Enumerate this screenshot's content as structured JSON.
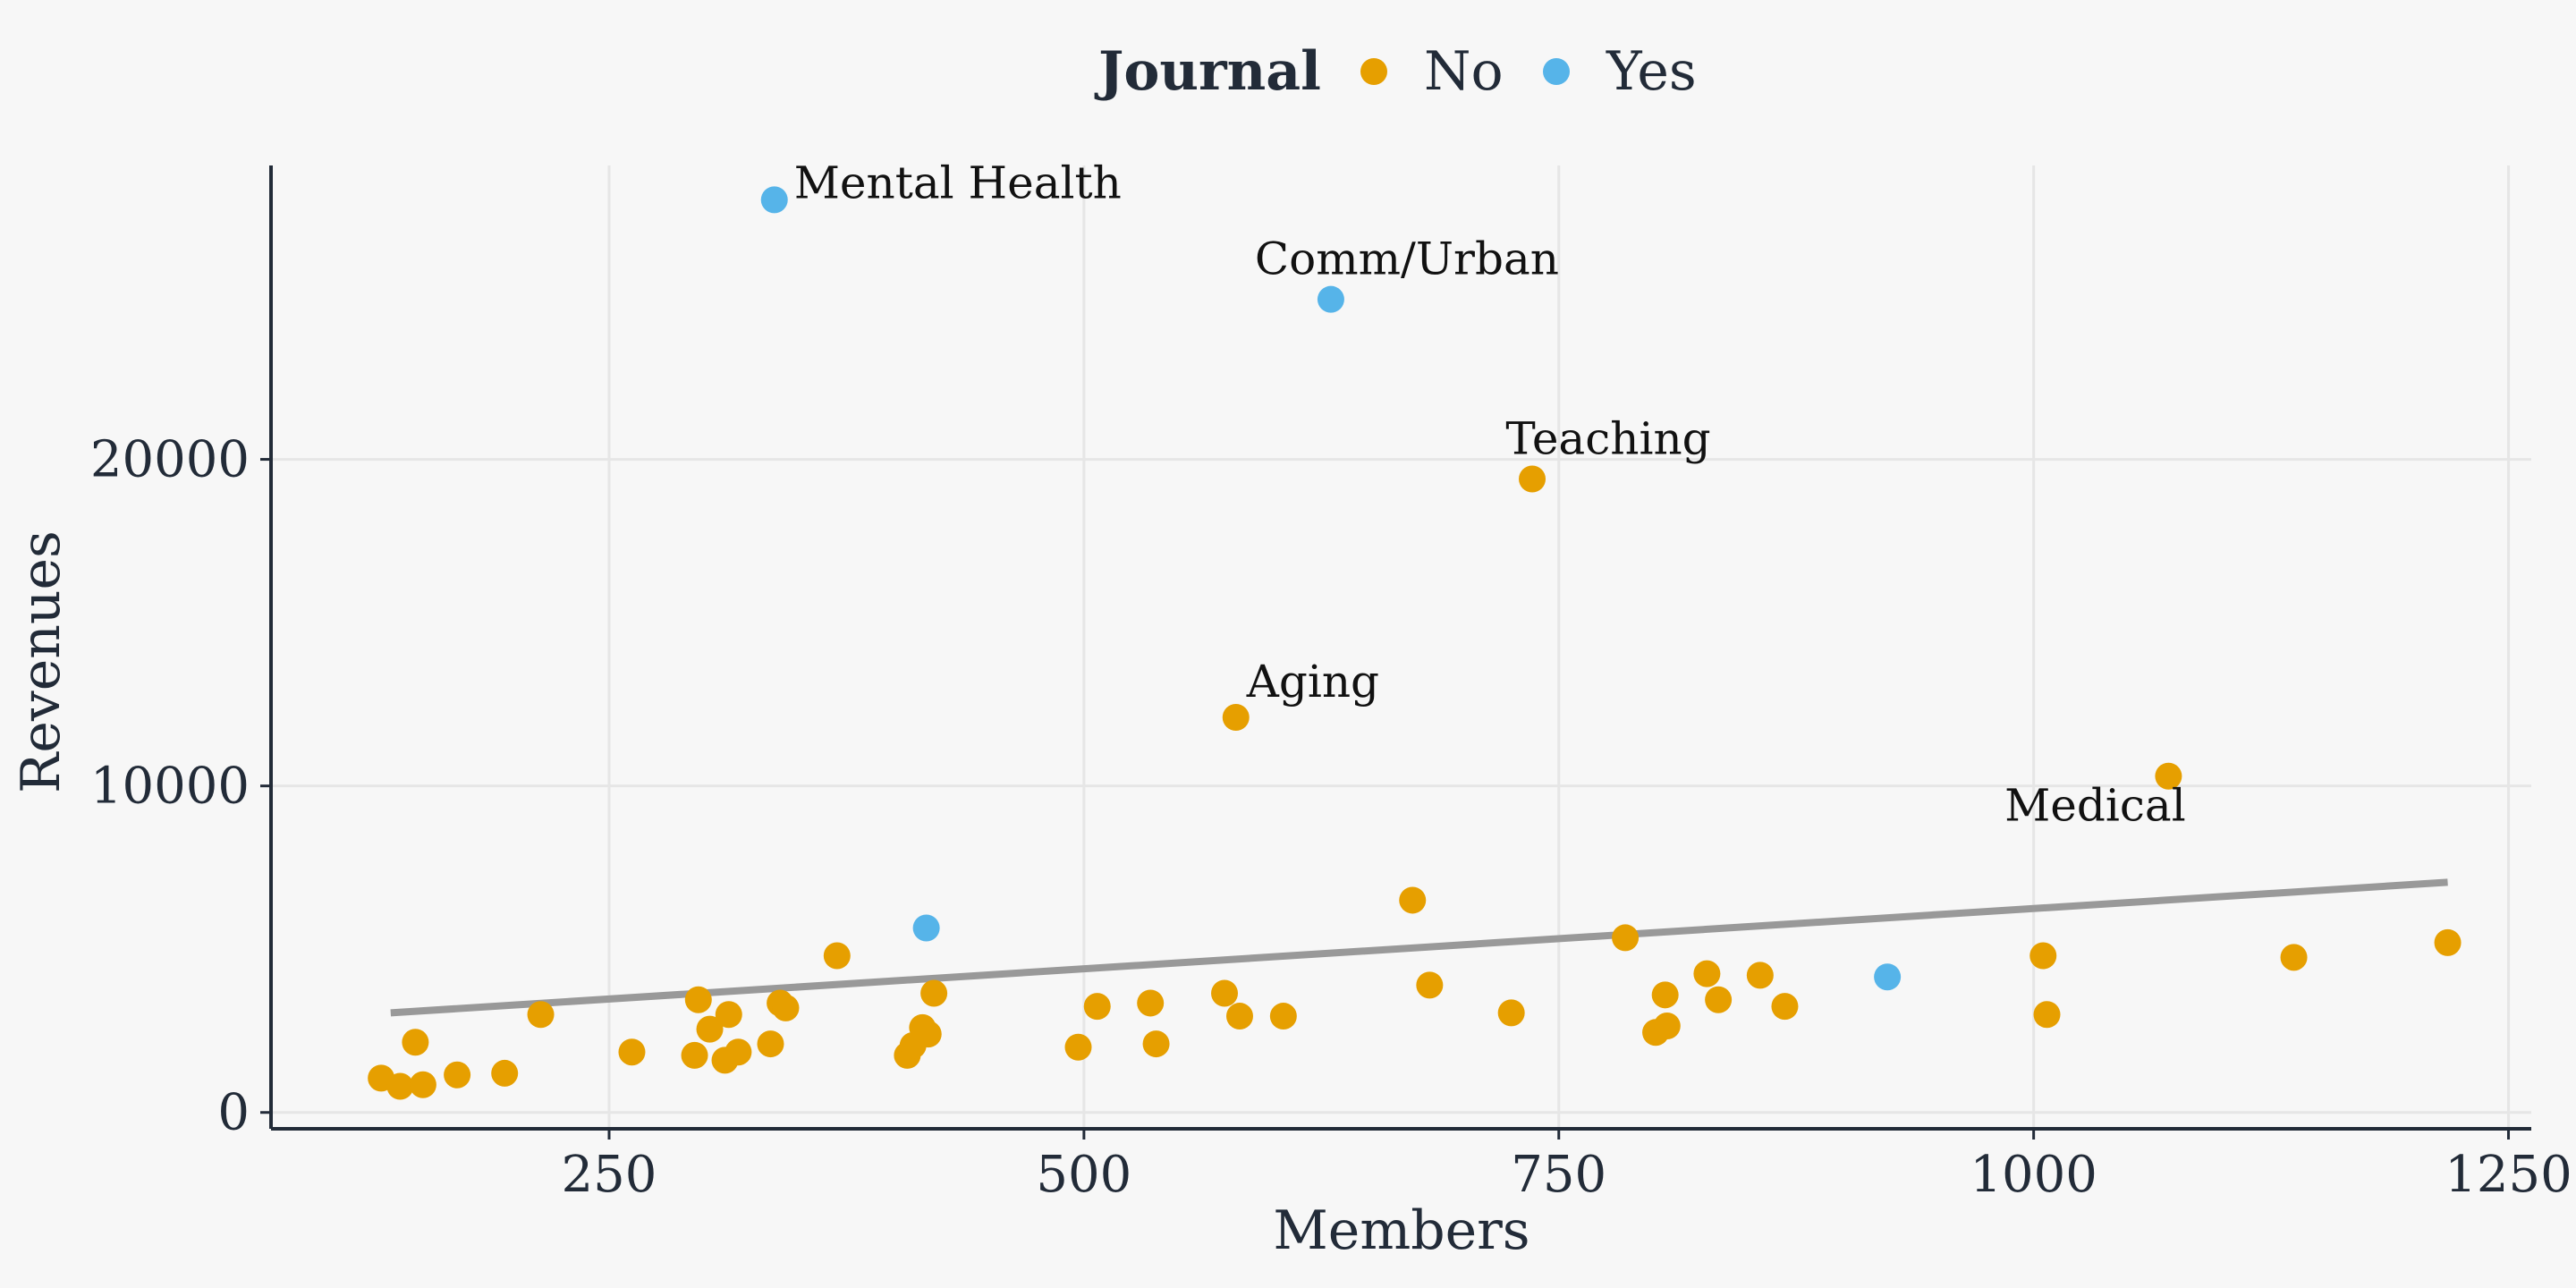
{
  "legend": {
    "title": "Journal",
    "position": "top",
    "entries": [
      {
        "label": "No",
        "color": "#E69F00"
      },
      {
        "label": "Yes",
        "color": "#56B4E9"
      }
    ]
  },
  "chart_data": {
    "type": "scatter",
    "xlabel": "Members",
    "ylabel": "Revenues",
    "xlim": [
      72,
      1262
    ],
    "ylim": [
      -500,
      29000
    ],
    "xticks": [
      250,
      500,
      750,
      1000,
      1250
    ],
    "yticks": [
      0,
      10000,
      20000
    ],
    "grid": true,
    "trend_line": {
      "x": [
        135,
        1218
      ],
      "y": [
        3050,
        7050
      ],
      "color": "#999999"
    },
    "series": [
      {
        "name": "No",
        "color": "#E69F00",
        "points": [
          [
            130,
            1050
          ],
          [
            140,
            800
          ],
          [
            148,
            2150
          ],
          [
            152,
            850
          ],
          [
            170,
            1150
          ],
          [
            195,
            1200
          ],
          [
            214,
            3000
          ],
          [
            262,
            1850
          ],
          [
            295,
            1750
          ],
          [
            297,
            3450
          ],
          [
            303,
            2550
          ],
          [
            311,
            1600
          ],
          [
            313,
            3000
          ],
          [
            318,
            1850
          ],
          [
            335,
            2100
          ],
          [
            340,
            3350
          ],
          [
            343,
            3200
          ],
          [
            370,
            4800
          ],
          [
            407,
            1750
          ],
          [
            410,
            2050
          ],
          [
            415,
            2600
          ],
          [
            418,
            2400
          ],
          [
            421,
            3650
          ],
          [
            497,
            2000
          ],
          [
            507,
            3250
          ],
          [
            535,
            3350
          ],
          [
            538,
            2100
          ],
          [
            574,
            3650
          ],
          [
            580,
            12100
          ],
          [
            582,
            2950
          ],
          [
            605,
            2950
          ],
          [
            673,
            6500
          ],
          [
            682,
            3900
          ],
          [
            725,
            3050
          ],
          [
            736,
            19400
          ],
          [
            785,
            5350
          ],
          [
            801,
            2450
          ],
          [
            806,
            3600
          ],
          [
            807,
            2650
          ],
          [
            828,
            4250
          ],
          [
            834,
            3450
          ],
          [
            856,
            4200
          ],
          [
            869,
            3250
          ],
          [
            1005,
            4800
          ],
          [
            1007,
            3000
          ],
          [
            1071,
            10300
          ],
          [
            1137,
            4750
          ],
          [
            1218,
            5200
          ]
        ]
      },
      {
        "name": "Yes",
        "color": "#56B4E9",
        "points": [
          [
            337,
            27950
          ],
          [
            417,
            5650
          ],
          [
            630,
            24900
          ],
          [
            923,
            4150
          ]
        ]
      }
    ],
    "annotations": [
      {
        "text": "Mental Health",
        "x": 337,
        "y": 27950,
        "anchor": "start",
        "dx": 22,
        "dy": -2
      },
      {
        "text": "Comm/Urban",
        "x": 630,
        "y": 24900,
        "anchor": "middle",
        "dx": 85,
        "dy": -28
      },
      {
        "text": "Teaching",
        "x": 736,
        "y": 19400,
        "anchor": "middle",
        "dx": 85,
        "dy": -28
      },
      {
        "text": "Aging",
        "x": 580,
        "y": 12100,
        "anchor": "start",
        "dx": 12,
        "dy": -23
      },
      {
        "text": "Medical",
        "x": 1071,
        "y": 10300,
        "anchor": "middle",
        "dx": -82,
        "dy": 50
      }
    ]
  }
}
